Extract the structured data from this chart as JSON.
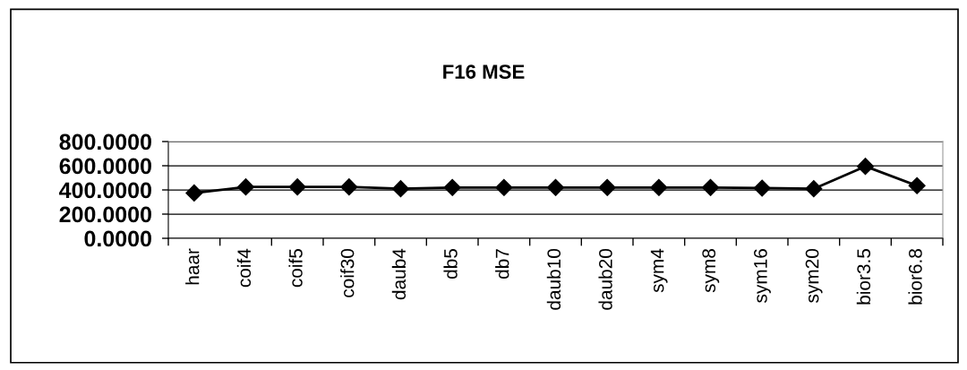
{
  "chart_data": {
    "type": "line",
    "title": "F16 MSE",
    "categories": [
      "haar",
      "coif4",
      "coif5",
      "coif30",
      "daub4",
      "db5",
      "db7",
      "daub10",
      "daub20",
      "sym4",
      "sym8",
      "sym16",
      "sym20",
      "bior3.5",
      "bior6.8"
    ],
    "values": [
      375,
      425,
      425,
      425,
      410,
      420,
      420,
      420,
      420,
      420,
      420,
      415,
      410,
      595,
      435
    ],
    "color": "#000000",
    "marker": "diamond",
    "line_style": "solid",
    "ylim": [
      0,
      800
    ],
    "yticks": [
      {
        "value": 0,
        "label": "0.0000"
      },
      {
        "value": 200,
        "label": "200.0000"
      },
      {
        "value": 400,
        "label": "400.0000"
      },
      {
        "value": 600,
        "label": "600.0000"
      },
      {
        "value": 800,
        "label": "800.0000"
      }
    ],
    "grid": "y"
  }
}
